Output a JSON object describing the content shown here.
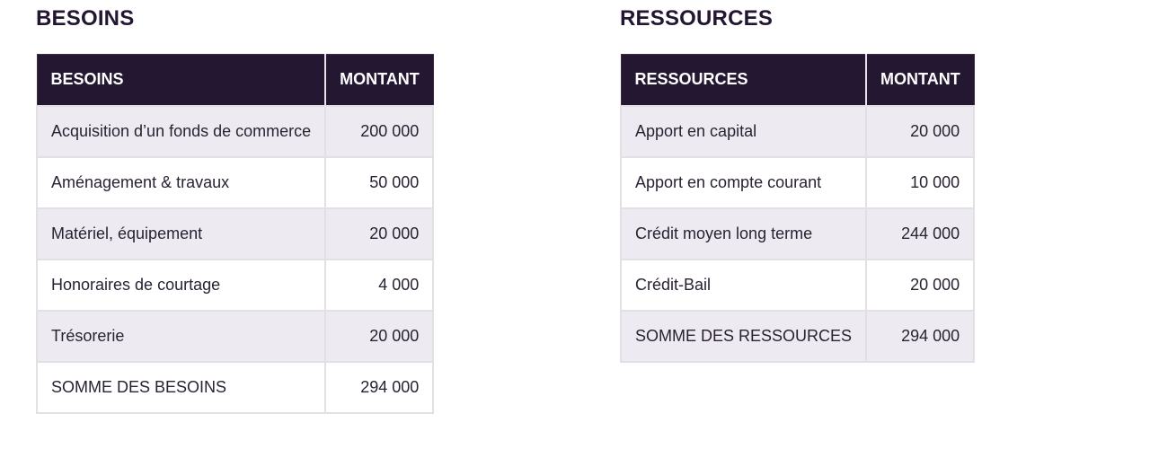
{
  "besoins": {
    "title": "BESOINS",
    "headers": {
      "label": "BESOINS",
      "amount": "MONTANT"
    },
    "rows": [
      {
        "label": "Acquisition d’un fonds de commerce",
        "amount": "200 000"
      },
      {
        "label": "Aménagement & travaux",
        "amount": "50 000"
      },
      {
        "label": "Matériel, équipement",
        "amount": "20 000"
      },
      {
        "label": "Honoraires de courtage",
        "amount": "4 000"
      },
      {
        "label": "Trésorerie",
        "amount": "20 000"
      },
      {
        "label": "SOMME DES BESOINS",
        "amount": "294 000"
      }
    ]
  },
  "ressources": {
    "title": "RESSOURCES",
    "headers": {
      "label": "RESSOURCES",
      "amount": "MONTANT"
    },
    "rows": [
      {
        "label": "Apport en capital",
        "amount": "20 000"
      },
      {
        "label": "Apport en compte courant",
        "amount": "10 000"
      },
      {
        "label": "Crédit moyen long terme",
        "amount": "244 000"
      },
      {
        "label": "Crédit-Bail",
        "amount": "20 000"
      },
      {
        "label": "SOMME DES RESSOURCES",
        "amount": "294 000"
      }
    ]
  },
  "colors": {
    "header_bg": "#241731",
    "row_alt_bg": "#edebf1",
    "border": "#e2e0e5",
    "title_text": "#231632"
  }
}
